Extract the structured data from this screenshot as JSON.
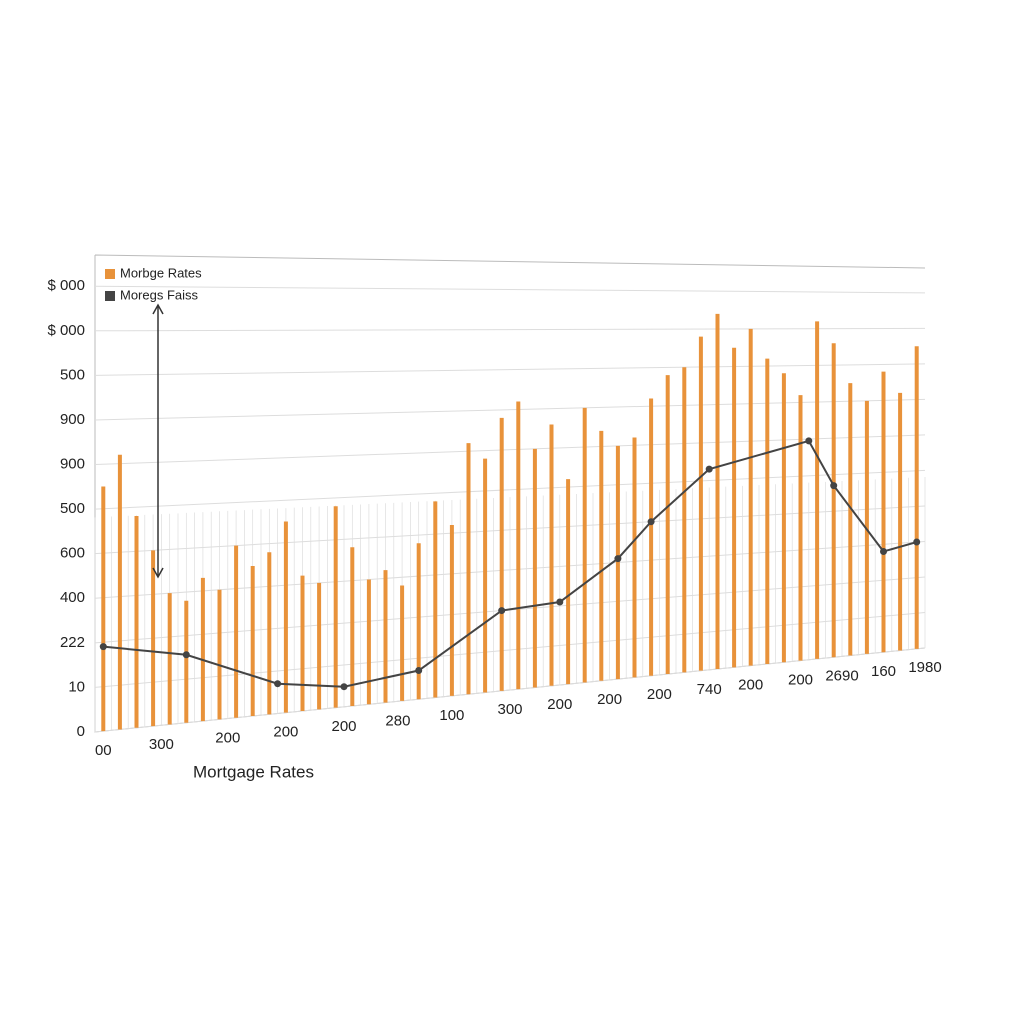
{
  "chart_data": {
    "type": "bar-line",
    "x_label": "Mortgage Rates",
    "xlim": [
      0,
      100
    ],
    "ylim": [
      0,
      107
    ],
    "xticks": [
      {
        "value": 1,
        "label": "00"
      },
      {
        "value": 8,
        "label": "300"
      },
      {
        "value": 16,
        "label": "200"
      },
      {
        "value": 23,
        "label": "200"
      },
      {
        "value": 30,
        "label": "200"
      },
      {
        "value": 36.5,
        "label": "280"
      },
      {
        "value": 43,
        "label": "100"
      },
      {
        "value": 50,
        "label": "300"
      },
      {
        "value": 56,
        "label": "200"
      },
      {
        "value": 62,
        "label": "200"
      },
      {
        "value": 68,
        "label": "200"
      },
      {
        "value": 74,
        "label": "740"
      },
      {
        "value": 79,
        "label": "200"
      },
      {
        "value": 85,
        "label": "200"
      },
      {
        "value": 90,
        "label": "2690"
      },
      {
        "value": 95,
        "label": "160"
      },
      {
        "value": 100,
        "label": "1980"
      }
    ],
    "yticks": [
      0,
      10,
      {
        "value": 20,
        "label": "222"
      },
      {
        "value": 30,
        "label": "400"
      },
      {
        "value": 40,
        "label": "600"
      },
      {
        "value": 50,
        "label": "500"
      },
      {
        "value": 60,
        "label": "900"
      },
      {
        "value": 70,
        "label": "900"
      },
      {
        "value": 80,
        "label": "500"
      },
      {
        "value": 90,
        "label": "$ 000"
      },
      {
        "value": 100,
        "label": "$ 000"
      }
    ],
    "grid": true,
    "legend": "top-left",
    "series": [
      {
        "name": "Morbge Rates",
        "color": "#e8923a",
        "kind": "bar",
        "x": [
          1,
          3,
          5,
          7,
          9,
          11,
          13,
          15,
          17,
          19,
          21,
          23,
          25,
          27,
          29,
          31,
          33,
          35,
          37,
          39,
          41,
          43,
          45,
          47,
          49,
          51,
          53,
          55,
          57,
          59,
          61,
          63,
          65,
          67,
          69,
          71,
          73,
          75,
          77,
          79,
          81,
          83,
          85,
          87,
          89,
          91,
          93,
          95,
          97,
          99
        ],
        "values": [
          55,
          62,
          48,
          40,
          30,
          28,
          33,
          30,
          40,
          35,
          38,
          45,
          32,
          30,
          48,
          38,
          30,
          32,
          28,
          38,
          48,
          42,
          62,
          58,
          68,
          72,
          60,
          66,
          52,
          70,
          64,
          60,
          62,
          72,
          78,
          80,
          88,
          94,
          85,
          90,
          82,
          78,
          72,
          92,
          86,
          75,
          70,
          78,
          72,
          85
        ]
      },
      {
        "name": "Moregs Faiss",
        "color": "#444444",
        "kind": "line",
        "x": [
          1,
          11,
          22,
          30,
          39,
          49,
          56,
          63,
          67,
          74,
          86,
          89,
          95,
          99
        ],
        "values": [
          19,
          15.6,
          7,
          4.8,
          7,
          20,
          21,
          31,
          40,
          53,
          59.5,
          47,
          28,
          30
        ]
      }
    ]
  }
}
